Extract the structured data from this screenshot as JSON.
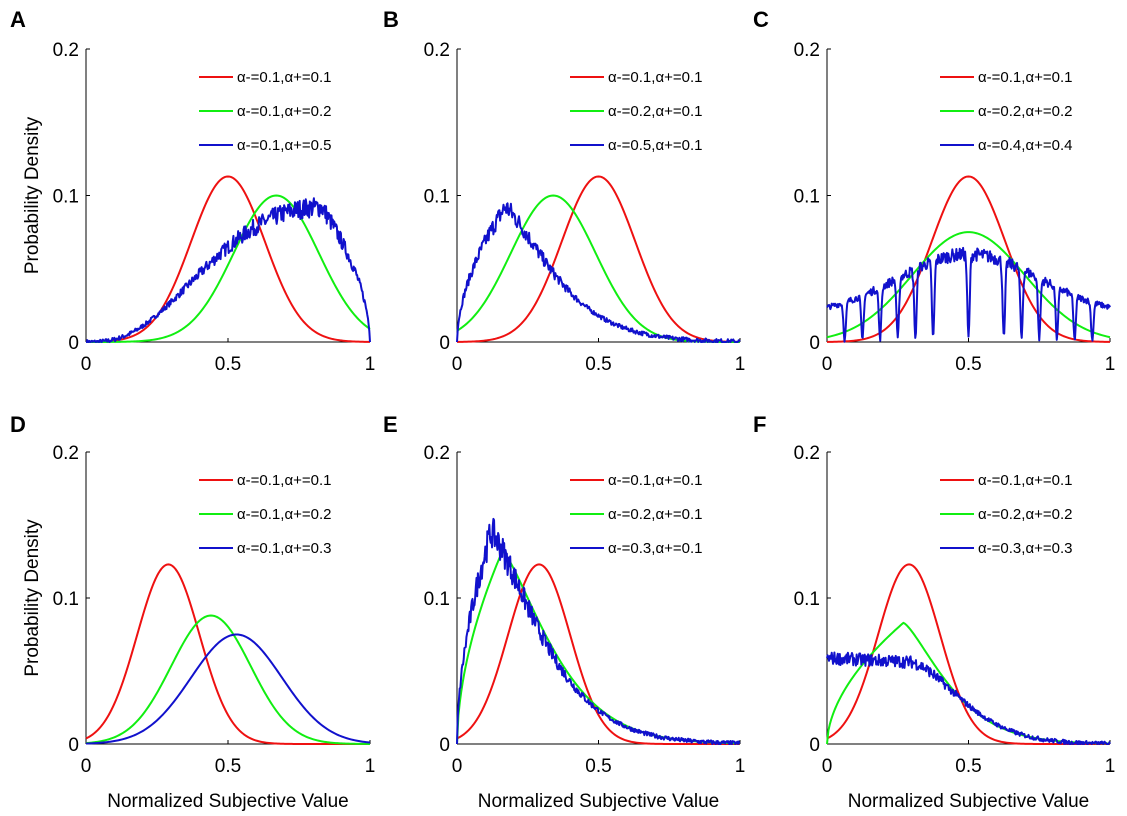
{
  "chart_data": [
    {
      "panel": "A",
      "type": "line",
      "ylabel": "Probability Density",
      "xlabel": "",
      "xlim": [
        0,
        1
      ],
      "ylim": [
        0,
        0.2
      ],
      "xticks": [
        "0",
        "0.5",
        "1"
      ],
      "yticks": [
        "0",
        "0.1",
        "0.2"
      ],
      "legend_position": "top-right",
      "series": [
        {
          "name": "α-=0.1,α+=0.1",
          "color": "#ee1111",
          "shape": "gauss",
          "peak_x": 0.5,
          "peak_y": 0.113,
          "width": 0.13,
          "noisy": false
        },
        {
          "name": "α-=0.1,α+=0.2",
          "color": "#11ee11",
          "shape": "gauss",
          "peak_x": 0.67,
          "peak_y": 0.1,
          "width": 0.15,
          "noisy": false
        },
        {
          "name": "α-=0.1,α+=0.5",
          "color": "#1111cc",
          "shape": "skew_right",
          "peak_x": 0.83,
          "peak_y": 0.092,
          "noisy": true
        }
      ]
    },
    {
      "panel": "B",
      "type": "line",
      "ylabel": "",
      "xlabel": "",
      "xlim": [
        0,
        1
      ],
      "ylim": [
        0,
        0.2
      ],
      "xticks": [
        "0",
        "0.5",
        "1"
      ],
      "yticks": [
        "0",
        "0.1",
        "0.2"
      ],
      "legend_position": "top-right",
      "series": [
        {
          "name": "α-=0.1,α+=0.1",
          "color": "#ee1111",
          "shape": "gauss",
          "peak_x": 0.5,
          "peak_y": 0.113,
          "width": 0.13,
          "noisy": false
        },
        {
          "name": "α-=0.2,α+=0.1",
          "color": "#11ee11",
          "shape": "gauss",
          "peak_x": 0.34,
          "peak_y": 0.1,
          "width": 0.15,
          "noisy": false
        },
        {
          "name": "α-=0.5,α+=0.1",
          "color": "#1111cc",
          "shape": "skew_left",
          "peak_x": 0.17,
          "peak_y": 0.092,
          "noisy": true
        }
      ]
    },
    {
      "panel": "C",
      "type": "line",
      "ylabel": "",
      "xlabel": "",
      "xlim": [
        0,
        1
      ],
      "ylim": [
        0,
        0.2
      ],
      "xticks": [
        "0",
        "0.5",
        "1"
      ],
      "yticks": [
        "0",
        "0.1",
        "0.2"
      ],
      "legend_position": "top-right",
      "series": [
        {
          "name": "α-=0.1,α+=0.1",
          "color": "#ee1111",
          "shape": "gauss",
          "peak_x": 0.5,
          "peak_y": 0.113,
          "width": 0.13,
          "noisy": false
        },
        {
          "name": "α-=0.2,α+=0.2",
          "color": "#11ee11",
          "shape": "gauss",
          "peak_x": 0.5,
          "peak_y": 0.075,
          "width": 0.2,
          "noisy": false
        },
        {
          "name": "α-=0.4,α+=0.4",
          "color": "#1111cc",
          "shape": "fractal",
          "peak_x": 0.5,
          "peak_y": 0.06,
          "noisy": true
        }
      ]
    },
    {
      "panel": "D",
      "type": "line",
      "ylabel": "Probability Density",
      "xlabel": "Normalized Subjective Value",
      "xlim": [
        0,
        1
      ],
      "ylim": [
        0,
        0.2
      ],
      "xticks": [
        "0",
        "0.5",
        "1"
      ],
      "yticks": [
        "0",
        "0.1",
        "0.2"
      ],
      "legend_position": "top-right",
      "series": [
        {
          "name": "α-=0.1,α+=0.1",
          "color": "#ee1111",
          "shape": "gauss",
          "peak_x": 0.29,
          "peak_y": 0.123,
          "width": 0.11,
          "noisy": false
        },
        {
          "name": "α-=0.1,α+=0.2",
          "color": "#11ee11",
          "shape": "gauss",
          "peak_x": 0.44,
          "peak_y": 0.088,
          "width": 0.14,
          "noisy": false
        },
        {
          "name": "α-=0.1,α+=0.3",
          "color": "#1111cc",
          "shape": "gauss",
          "peak_x": 0.53,
          "peak_y": 0.075,
          "width": 0.16,
          "noisy": false
        }
      ]
    },
    {
      "panel": "E",
      "type": "line",
      "ylabel": "",
      "xlabel": "Normalized Subjective Value",
      "xlim": [
        0,
        1
      ],
      "ylim": [
        0,
        0.2
      ],
      "xticks": [
        "0",
        "0.5",
        "1"
      ],
      "yticks": [
        "0",
        "0.1",
        "0.2"
      ],
      "legend_position": "top-right",
      "series": [
        {
          "name": "α-=0.1,α+=0.1",
          "color": "#ee1111",
          "shape": "gauss",
          "peak_x": 0.29,
          "peak_y": 0.123,
          "width": 0.11,
          "noisy": false
        },
        {
          "name": "α-=0.2,α+=0.1",
          "color": "#11ee11",
          "shape": "skew_left",
          "peak_x": 0.16,
          "peak_y": 0.132,
          "noisy": false
        },
        {
          "name": "α-=0.3,α+=0.1",
          "color": "#1111cc",
          "shape": "skew_left",
          "peak_x": 0.12,
          "peak_y": 0.145,
          "noisy": true
        }
      ]
    },
    {
      "panel": "F",
      "type": "line",
      "ylabel": "",
      "xlabel": "Normalized Subjective Value",
      "xlim": [
        0,
        1
      ],
      "ylim": [
        0,
        0.2
      ],
      "xticks": [
        "0",
        "0.5",
        "1"
      ],
      "yticks": [
        "0",
        "0.1",
        "0.2"
      ],
      "legend_position": "top-right",
      "series": [
        {
          "name": "α-=0.1,α+=0.1",
          "color": "#ee1111",
          "shape": "gauss",
          "peak_x": 0.29,
          "peak_y": 0.123,
          "width": 0.11,
          "noisy": false
        },
        {
          "name": "α-=0.2,α+=0.2",
          "color": "#11ee11",
          "shape": "skew_left",
          "peak_x": 0.27,
          "peak_y": 0.083,
          "noisy": false
        },
        {
          "name": "α-=0.3,α+=0.3",
          "color": "#1111cc",
          "shape": "plateau",
          "peak_x": 0.1,
          "peak_y": 0.062,
          "noisy": true
        }
      ]
    }
  ]
}
